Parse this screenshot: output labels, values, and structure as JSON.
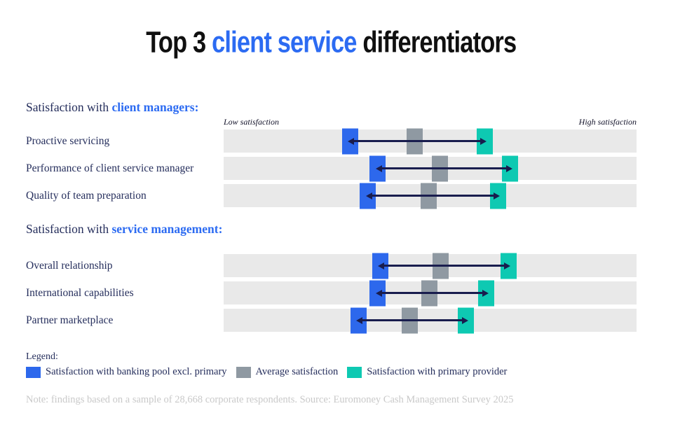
{
  "title": {
    "prefix": "Top 3 ",
    "highlight": "client service",
    "suffix": " differentiators"
  },
  "colors": {
    "accent": "#2c6bf2",
    "navy": "#252e5c",
    "arrow": "#191d4e",
    "band": "#e9e9e9",
    "banking_pool": "#2d68ec",
    "average": "#8f99a2",
    "primary_provider": "#0ec9b2",
    "note": "#c9c9c9",
    "ink": "#101010"
  },
  "chart_data": {
    "type": "scatter",
    "subtype": "dumbbell-range",
    "axis": {
      "left": "Low satisfaction",
      "right": "High satisfaction",
      "range": [
        0,
        100
      ],
      "grid": false
    },
    "marker_order": [
      "banking_pool",
      "average",
      "primary_provider"
    ],
    "series_names": {
      "banking_pool": "Satisfaction with banking pool excl. primary",
      "average": "Average satisfaction",
      "primary_provider": "Satisfaction with primary provider"
    },
    "sections": [
      {
        "heading_prefix": "Satisfaction with ",
        "heading_highlight": "client managers:",
        "rows": [
          {
            "label": "Proactive servicing",
            "values": {
              "banking_pool": 30.6,
              "average": 46.3,
              "primary_provider": 63.2
            }
          },
          {
            "label": "Performance of client service manager",
            "values": {
              "banking_pool": 37.3,
              "average": 52.3,
              "primary_provider": 69.4
            }
          },
          {
            "label": "Quality of team preparation",
            "values": {
              "banking_pool": 34.9,
              "average": 49.7,
              "primary_provider": 66.4
            }
          }
        ]
      },
      {
        "heading_prefix": "Satisfaction with ",
        "heading_highlight": "service management:",
        "rows": [
          {
            "label": "Overall relationship",
            "values": {
              "banking_pool": 37.9,
              "average": 52.5,
              "primary_provider": 69.0
            }
          },
          {
            "label": "International capabilities",
            "values": {
              "banking_pool": 37.3,
              "average": 49.8,
              "primary_provider": 63.6
            }
          },
          {
            "label": "Partner marketplace",
            "values": {
              "banking_pool": 32.6,
              "average": 45.1,
              "primary_provider": 58.7
            }
          }
        ]
      }
    ]
  },
  "legend": {
    "label": "Legend:",
    "items": [
      {
        "color_key": "banking_pool",
        "label": "Satisfaction with banking pool excl. primary"
      },
      {
        "color_key": "average",
        "label": "Average satisfaction"
      },
      {
        "color_key": "primary_provider",
        "label": "Satisfaction with primary provider"
      }
    ]
  },
  "note": "Note: findings based on a sample of 28,668 corporate respondents. Source: Euromoney Cash Management Survey 2025"
}
